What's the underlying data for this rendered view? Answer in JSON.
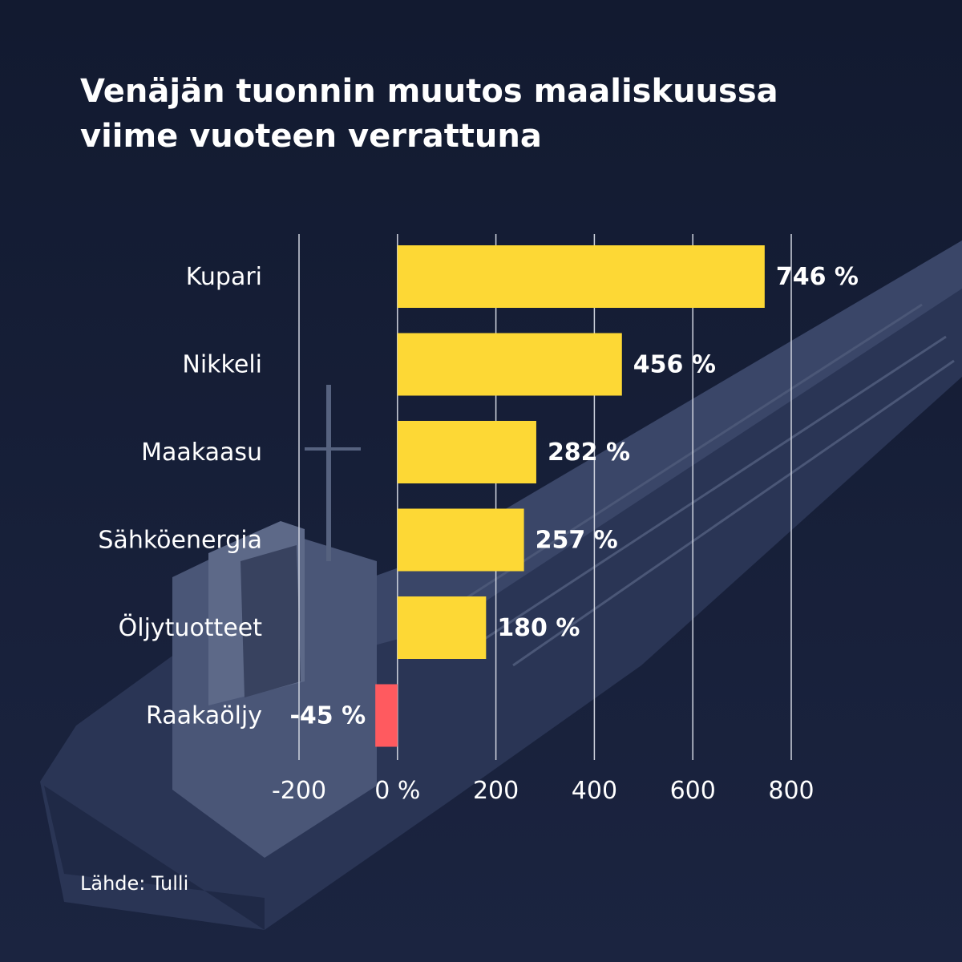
{
  "title_lines": [
    "Venäjän tuonnin muutos maaliskuussa",
    "viime vuoteen verrattuna"
  ],
  "source": "Lähde: Tulli",
  "colors": {
    "positive": "#fdd835",
    "negative": "#ff5a5f",
    "text": "#ffffff",
    "grid": "#d0d4df",
    "background": "#141c33"
  },
  "chart_data": {
    "type": "bar",
    "orientation": "horizontal",
    "categories": [
      "Kupari",
      "Nikkeli",
      "Maakaasu",
      "Sähköenergia",
      "Öljytuotteet",
      "Raakaöljy"
    ],
    "values": [
      746,
      456,
      282,
      257,
      180,
      -45
    ],
    "value_labels": [
      "746 %",
      "456 %",
      "282 %",
      "257 %",
      "180 %",
      "-45 %"
    ],
    "xlim": [
      -200,
      800
    ],
    "xticks": [
      -200,
      0,
      200,
      400,
      600,
      800
    ],
    "xtick_labels": [
      "-200",
      "0 %",
      "200",
      "400",
      "600",
      "800"
    ],
    "grid": true
  }
}
